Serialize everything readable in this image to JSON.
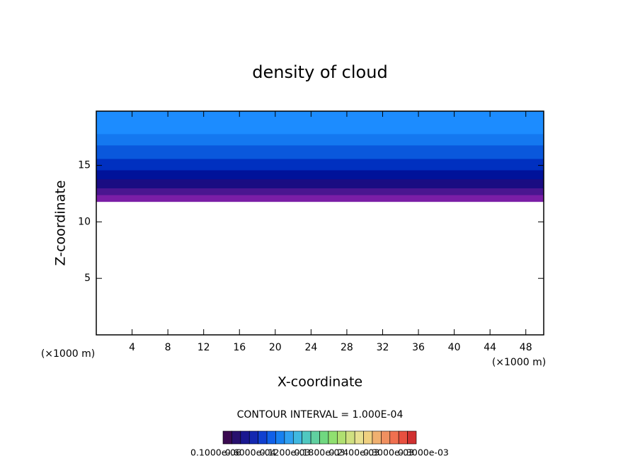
{
  "chart_data": {
    "type": "contour",
    "title": "density of cloud",
    "x_label": "X-coordinate",
    "y_label": "Z-coordinate",
    "x_unit": "(×1000 m)",
    "y_unit": "(×1000 m)",
    "xlim": [
      0,
      50
    ],
    "xticks": [
      4,
      8,
      12,
      16,
      20,
      24,
      28,
      32,
      36,
      40,
      44,
      48
    ],
    "ylim": [
      0,
      19.8
    ],
    "yticks": [
      5,
      10,
      15
    ],
    "bands": [
      {
        "z": 11.8,
        "color": "#7a1ea6"
      },
      {
        "z": 12.4,
        "color": "#4a1690"
      },
      {
        "z": 13.0,
        "color": "#1a0c82"
      },
      {
        "z": 13.8,
        "color": "#00129a"
      },
      {
        "z": 14.6,
        "color": "#0030c0"
      },
      {
        "z": 15.6,
        "color": "#0a58dc"
      },
      {
        "z": 16.8,
        "color": "#1478f0"
      },
      {
        "z": 17.8,
        "color": "#1c8cff"
      }
    ],
    "contour_interval": "CONTOUR INTERVAL = 1.000E-04",
    "colorbar_colors": [
      "#3a0a50",
      "#28106e",
      "#1a1890",
      "#1428b0",
      "#1040d0",
      "#1060e8",
      "#1880f0",
      "#30a0f0",
      "#40b8e0",
      "#50c8c0",
      "#60d0a0",
      "#70d880",
      "#90e070",
      "#b0e070",
      "#d0e080",
      "#e8e090",
      "#f0d080",
      "#f0b070",
      "#f09060",
      "#f07050",
      "#e85040",
      "#d03030"
    ],
    "colorbar_labels": [
      "0.1000e-06",
      "0.6000e-04",
      "0.1200e-03",
      "0.1800e-03",
      "0.2400e-03",
      "0.3000e-03",
      "0.3000e-03"
    ]
  }
}
